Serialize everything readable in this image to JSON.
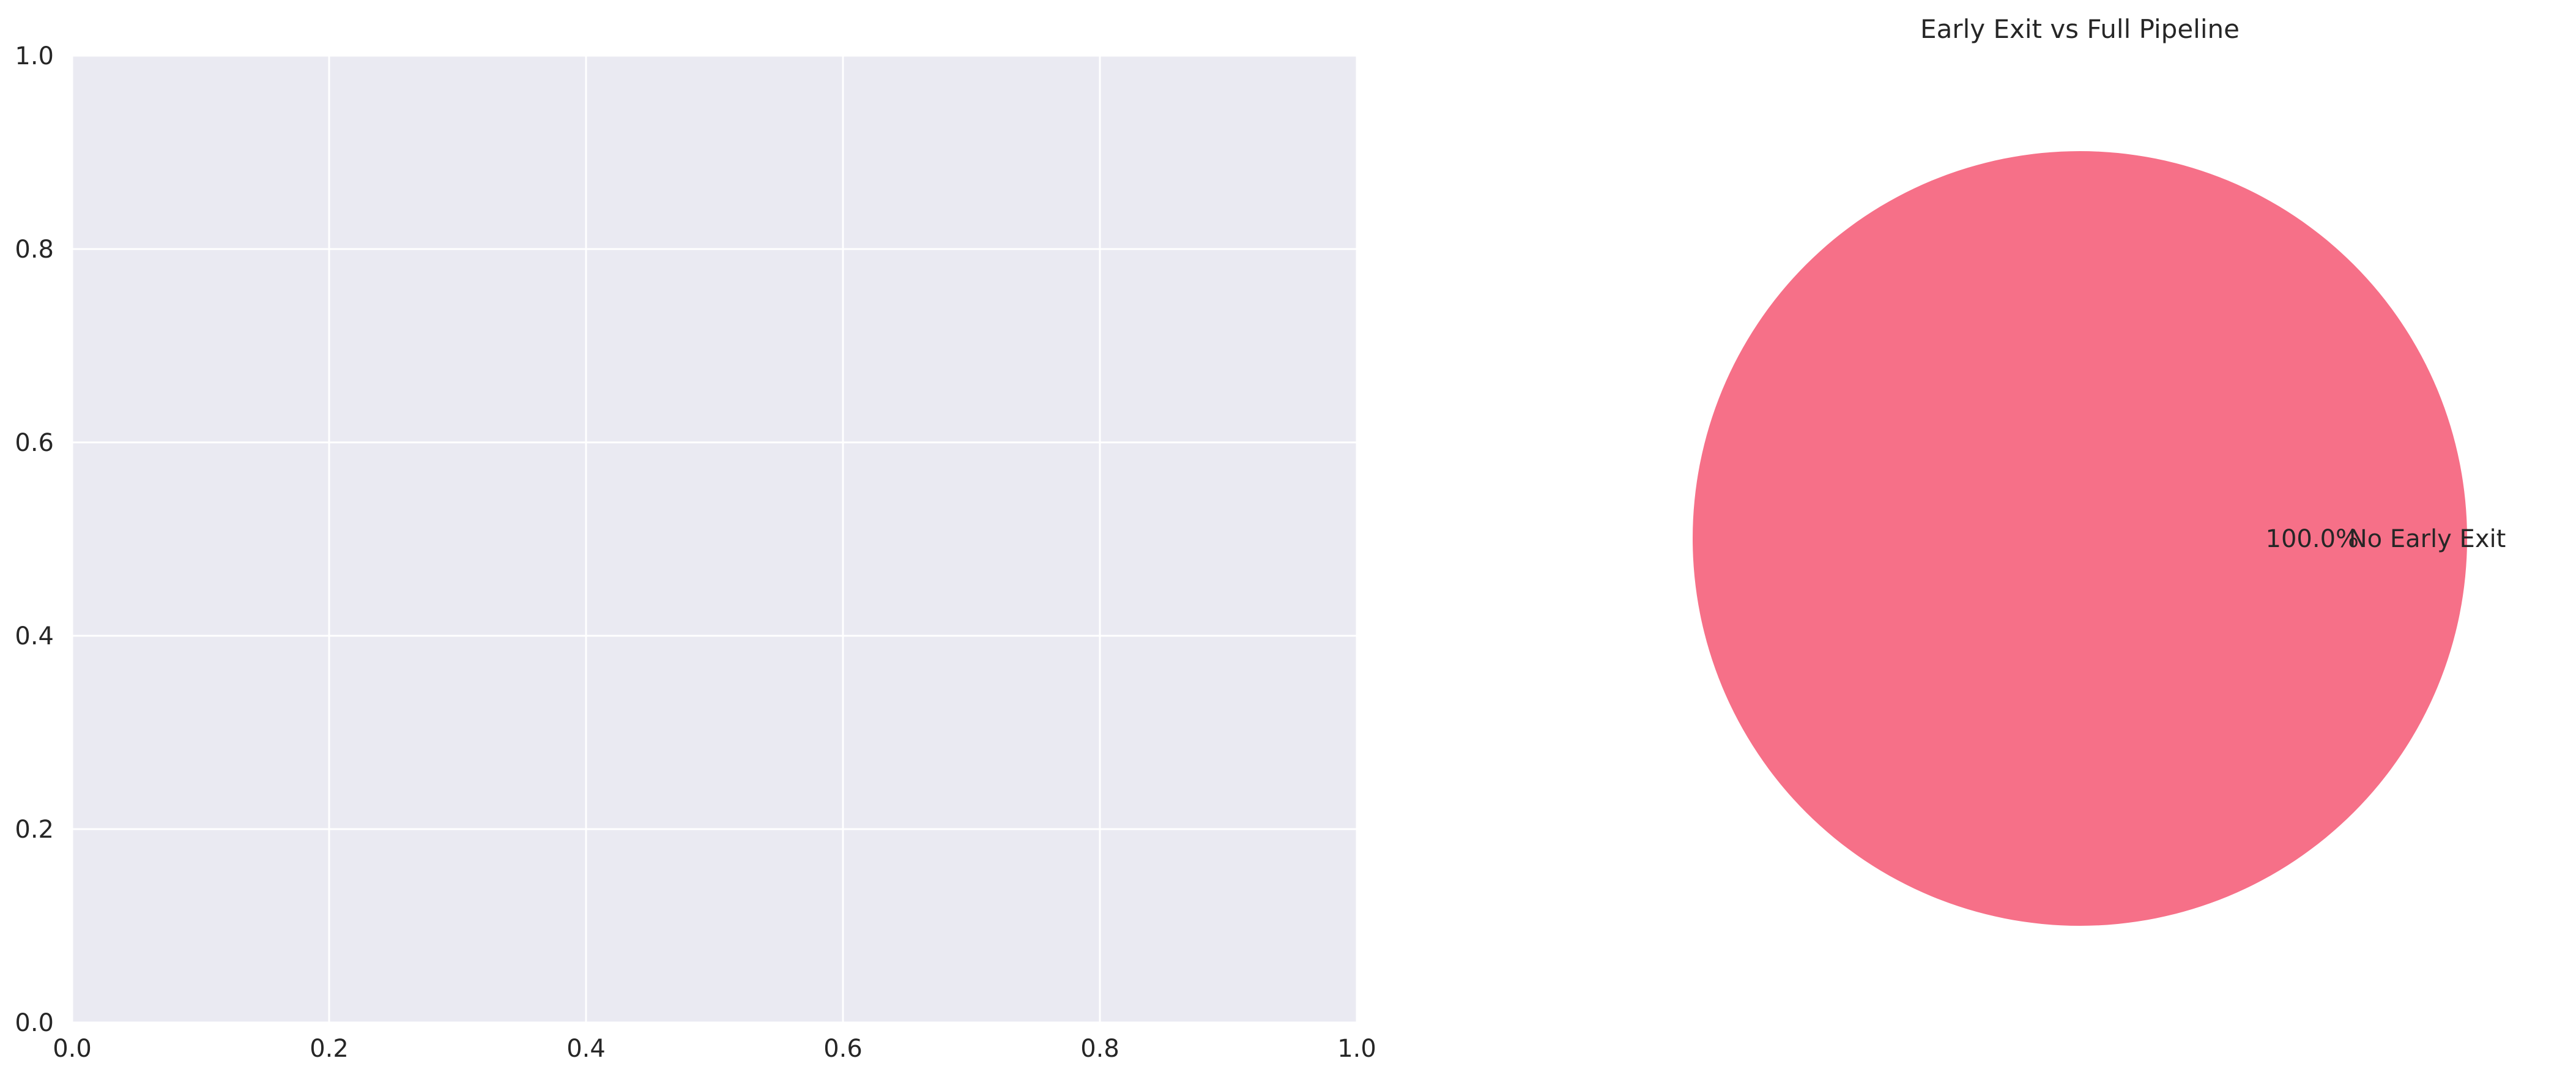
{
  "chart_data": [
    {
      "type": "line",
      "title": "",
      "xlabel": "",
      "ylabel": "",
      "xlim": [
        0.0,
        1.0
      ],
      "ylim": [
        0.0,
        1.0
      ],
      "grid": true,
      "series": [],
      "x_ticks": [
        0.0,
        0.2,
        0.4,
        0.6,
        0.8,
        1.0
      ],
      "y_ticks": [
        0.0,
        0.2,
        0.4,
        0.6,
        0.8,
        1.0
      ],
      "x_tick_labels": [
        "0.0",
        "0.2",
        "0.4",
        "0.6",
        "0.8",
        "1.0"
      ],
      "y_tick_labels": [
        "0.0",
        "0.2",
        "0.4",
        "0.6",
        "0.8",
        "1.0"
      ],
      "background": "#eaeaf2",
      "grid_color": "#ffffff"
    },
    {
      "type": "pie",
      "title": "Early Exit vs Full Pipeline",
      "labels": [
        "No Early Exit"
      ],
      "values": [
        100.0
      ],
      "autopct_labels": [
        "100.0%"
      ],
      "colors": [
        "#f67088"
      ]
    }
  ]
}
